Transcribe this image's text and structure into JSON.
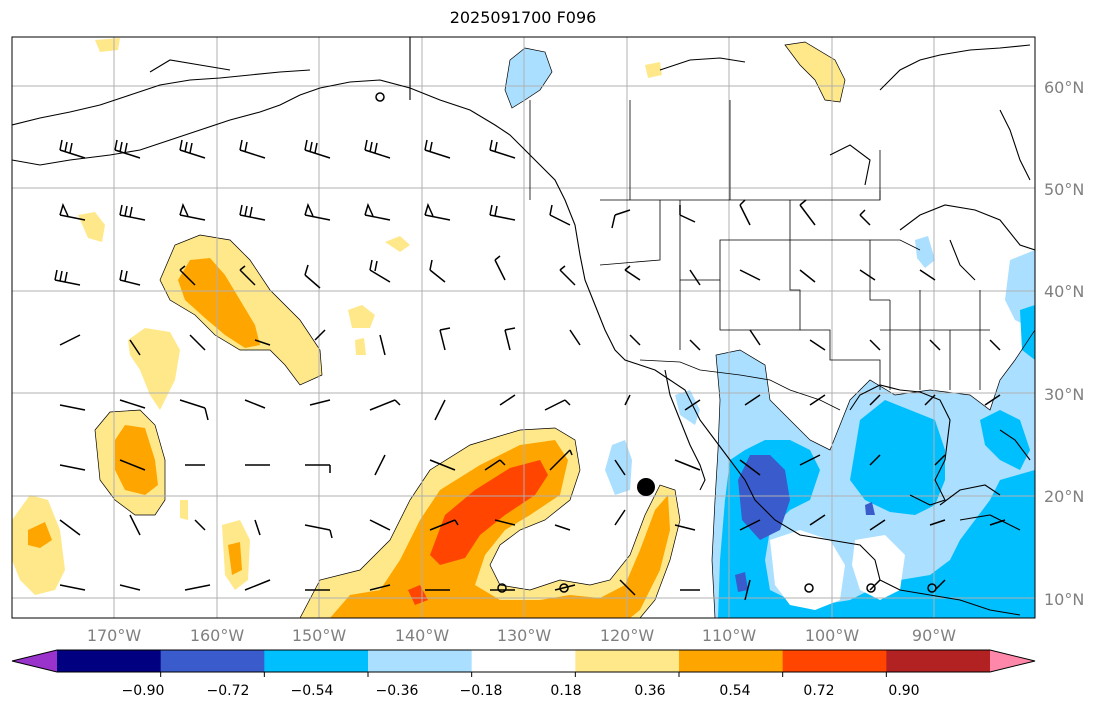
{
  "title": "2025091700 F096",
  "lat_labels": [
    "60°N",
    "50°N",
    "40°N",
    "30°N",
    "20°N",
    "10°N"
  ],
  "lon_labels": [
    "170°W",
    "160°W",
    "150°W",
    "140°W",
    "130°W",
    "120°W",
    "110°W",
    "100°W",
    "90°W"
  ],
  "colorbar": {
    "ticks": [
      "−0.90",
      "−0.72",
      "−0.54",
      "−0.36",
      "−0.18",
      "0.18",
      "0.36",
      "0.54",
      "0.72",
      "0.90"
    ],
    "colors": [
      "#9933cc",
      "#000080",
      "#3a5bcc",
      "#00bfff",
      "#aadfff",
      "#ffffff",
      "#ffe88a",
      "#ffa500",
      "#ff4500",
      "#b22222",
      "#ff88aa"
    ]
  },
  "colors": {
    "land_outline": "#000000",
    "grid": "#b0b0b0",
    "label_gray": "#808080"
  }
}
